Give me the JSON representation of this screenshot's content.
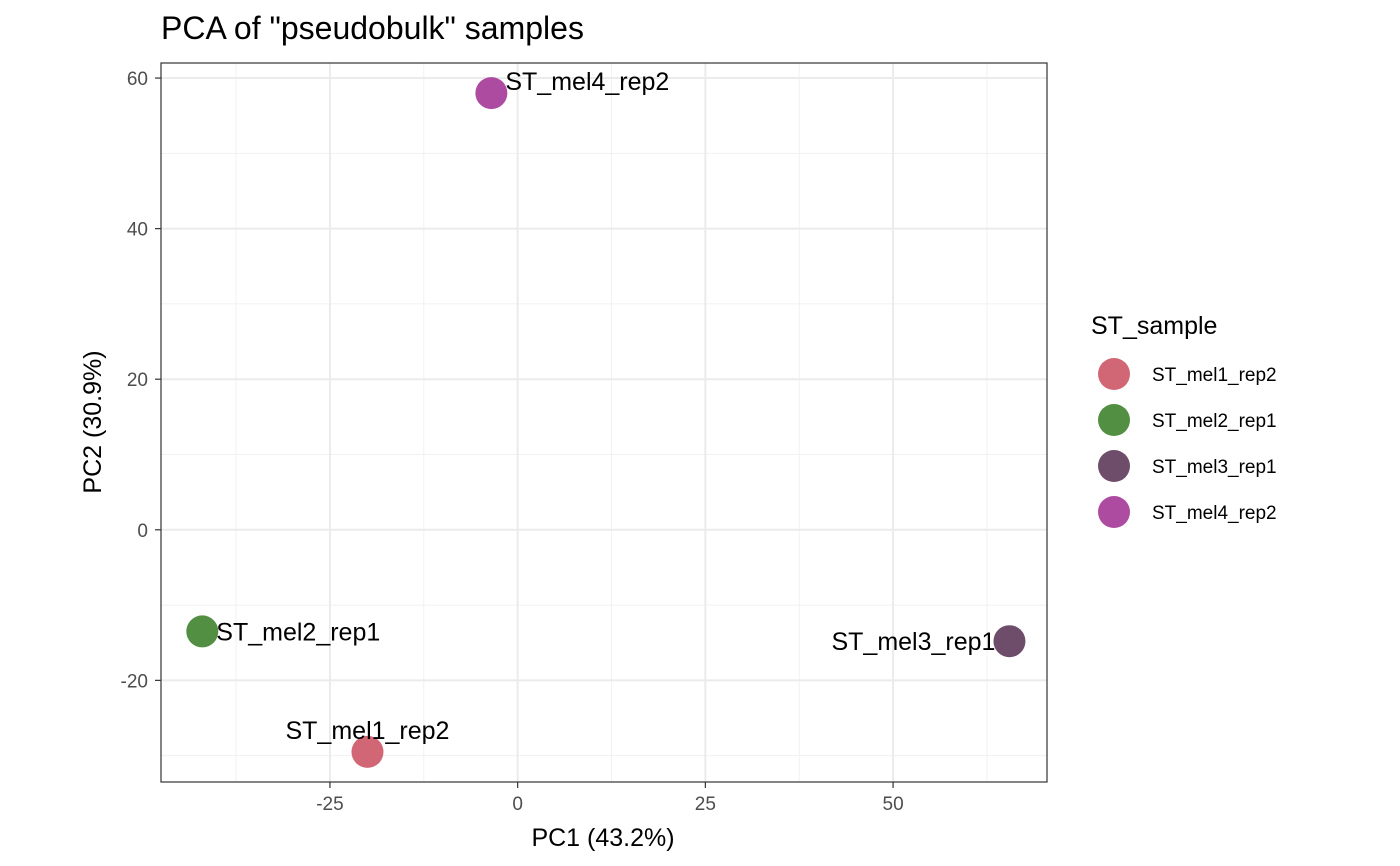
{
  "chart_data": {
    "type": "scatter",
    "title": "PCA of \"pseudobulk\" samples",
    "xlabel": "PC1 (43.2%)",
    "ylabel": "PC2 (30.9%)",
    "xlim": [
      -47.5,
      70.5
    ],
    "ylim": [
      -33.5,
      62
    ],
    "x_ticks": [
      -25,
      0,
      25,
      50
    ],
    "y_ticks": [
      -20,
      0,
      20,
      40,
      60
    ],
    "x_tick_labels": [
      "-25",
      "0",
      "25",
      "50"
    ],
    "y_tick_labels": [
      "-20",
      "0",
      "20",
      "40",
      "60"
    ],
    "x_minor_ticks": [
      -37.5,
      -12.5,
      12.5,
      37.5,
      62.5
    ],
    "y_minor_ticks": [
      -30,
      -10,
      10,
      30,
      50
    ],
    "grid": true,
    "legend": {
      "title": "ST_sample",
      "placement": "right"
    },
    "points": [
      {
        "name": "ST_mel1_rep2",
        "x": -20,
        "y": -29.5,
        "color": "#D16775",
        "label": "ST_mel1_rep2",
        "label_pos": "above"
      },
      {
        "name": "ST_mel2_rep1",
        "x": -42,
        "y": -13.5,
        "color": "#528F43",
        "label": "ST_mel2_rep1",
        "label_pos": "right"
      },
      {
        "name": "ST_mel3_rep1",
        "x": 65.5,
        "y": -14.8,
        "color": "#6E4D6B",
        "label": "ST_mel3_rep1",
        "label_pos": "left"
      },
      {
        "name": "ST_mel4_rep2",
        "x": -3.5,
        "y": 58,
        "color": "#AD4BA1",
        "label": "ST_mel4_rep2",
        "label_pos": "right-up"
      }
    ]
  }
}
